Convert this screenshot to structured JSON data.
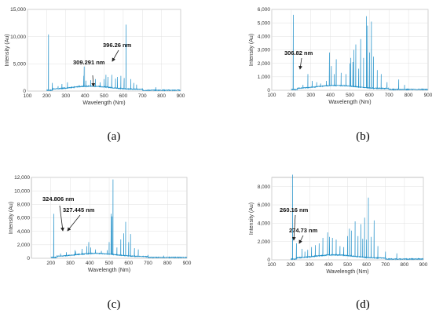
{
  "chart_data": [
    {
      "panel": "(a)",
      "type": "line",
      "xlabel": "Wavelength (Nm)",
      "ylabel": "Intensity (Au)",
      "xlim": [
        100,
        900
      ],
      "ylim": [
        0,
        15000
      ],
      "x_ticks": [
        100,
        200,
        300,
        400,
        500,
        600,
        700,
        800,
        900
      ],
      "x_tick_labels": [
        "100",
        "200",
        "300",
        "400",
        "500",
        "600",
        "700",
        "800",
        "900"
      ],
      "y_ticks": [
        0,
        5000,
        10000,
        15000
      ],
      "y_tick_labels": [
        "0",
        "5,000",
        "10,000",
        "15,000"
      ],
      "grid": true,
      "series_color": "#1f8fc8",
      "annotations": [
        {
          "text": "309.291 nm",
          "x": 309.291,
          "y": 1600
        },
        {
          "text": "396.26 nm",
          "x": 396.26,
          "y": 4500
        }
      ],
      "peaks": [
        [
          210,
          10400
        ],
        [
          230,
          1500
        ],
        [
          260,
          900
        ],
        [
          280,
          1300
        ],
        [
          309,
          1600
        ],
        [
          330,
          800
        ],
        [
          345,
          900
        ],
        [
          370,
          1100
        ],
        [
          394,
          2800
        ],
        [
          396,
          4500
        ],
        [
          405,
          1900
        ],
        [
          430,
          2000
        ],
        [
          455,
          2200
        ],
        [
          480,
          1600
        ],
        [
          500,
          2200
        ],
        [
          510,
          3000
        ],
        [
          520,
          2600
        ],
        [
          540,
          3000
        ],
        [
          560,
          2300
        ],
        [
          570,
          2600
        ],
        [
          588,
          2800
        ],
        [
          605,
          2400
        ],
        [
          615,
          12200
        ],
        [
          640,
          2200
        ],
        [
          655,
          1500
        ],
        [
          670,
          1200
        ],
        [
          700,
          500
        ],
        [
          770,
          700
        ]
      ]
    },
    {
      "panel": "(b)",
      "type": "line",
      "xlabel": "Wavelength (Nm)",
      "ylabel": "Intensity (Au)",
      "xlim": [
        100,
        900
      ],
      "ylim": [
        0,
        6000
      ],
      "x_ticks": [
        100,
        200,
        300,
        400,
        500,
        600,
        700,
        800,
        900
      ],
      "x_tick_labels": [
        "100",
        "200",
        "300",
        "400",
        "500",
        "600",
        "700",
        "800",
        "900"
      ],
      "y_ticks": [
        0,
        1000,
        2000,
        3000,
        4000,
        5000,
        6000
      ],
      "y_tick_labels": [
        "0",
        "1,000",
        "2,000",
        "3,000",
        "4,000",
        "5,000",
        "6,000"
      ],
      "grid": true,
      "series_color": "#1f8fc8",
      "annotations": [
        {
          "text": "306.82 nm",
          "x": 306.82,
          "y": 700
        }
      ],
      "peaks": [
        [
          210,
          5600
        ],
        [
          260,
          400
        ],
        [
          285,
          1200
        ],
        [
          307,
          700
        ],
        [
          330,
          600
        ],
        [
          350,
          500
        ],
        [
          380,
          700
        ],
        [
          395,
          2800
        ],
        [
          405,
          1800
        ],
        [
          420,
          1200
        ],
        [
          430,
          2300
        ],
        [
          455,
          1300
        ],
        [
          480,
          1200
        ],
        [
          500,
          2000
        ],
        [
          505,
          2400
        ],
        [
          515,
          2100
        ],
        [
          520,
          3000
        ],
        [
          530,
          3400
        ],
        [
          545,
          1600
        ],
        [
          555,
          3800
        ],
        [
          570,
          2400
        ],
        [
          585,
          5500
        ],
        [
          590,
          4800
        ],
        [
          600,
          2800
        ],
        [
          610,
          5100
        ],
        [
          620,
          2500
        ],
        [
          640,
          1500
        ],
        [
          660,
          1200
        ],
        [
          690,
          600
        ],
        [
          750,
          800
        ],
        [
          780,
          400
        ]
      ]
    },
    {
      "panel": "(c)",
      "type": "line",
      "xlabel": "Wavelength (Nm)",
      "ylabel": "Intensity (Au)",
      "xlim": [
        100,
        900
      ],
      "ylim": [
        0,
        12000
      ],
      "x_ticks": [
        200,
        300,
        400,
        500,
        600,
        700,
        800,
        900
      ],
      "x_tick_labels": [
        "200",
        "300",
        "400",
        "500",
        "600",
        "700",
        "800",
        "900"
      ],
      "y_ticks": [
        0,
        2000,
        4000,
        6000,
        8000,
        10000,
        12000
      ],
      "y_tick_labels": [
        "0",
        "2,000",
        "4,000",
        "6,000",
        "8,000",
        "10,000",
        "12,000"
      ],
      "grid": true,
      "series_color": "#1f8fc8",
      "annotations": [
        {
          "text": "324.806 nm",
          "x": 324.806,
          "y": 1200
        },
        {
          "text": "327.445 nm",
          "x": 327.445,
          "y": 1000
        }
      ],
      "peaks": [
        [
          215,
          6600
        ],
        [
          250,
          700
        ],
        [
          280,
          900
        ],
        [
          325,
          1200
        ],
        [
          327,
          1000
        ],
        [
          360,
          1400
        ],
        [
          385,
          1800
        ],
        [
          395,
          2400
        ],
        [
          405,
          1600
        ],
        [
          430,
          1300
        ],
        [
          460,
          1100
        ],
        [
          490,
          1200
        ],
        [
          500,
          2400
        ],
        [
          510,
          6600
        ],
        [
          515,
          6200
        ],
        [
          520,
          11700
        ],
        [
          540,
          1600
        ],
        [
          560,
          2800
        ],
        [
          575,
          3700
        ],
        [
          585,
          5400
        ],
        [
          600,
          2400
        ],
        [
          610,
          3600
        ],
        [
          630,
          1500
        ],
        [
          650,
          1300
        ],
        [
          700,
          500
        ],
        [
          780,
          400
        ]
      ]
    },
    {
      "panel": "(d)",
      "type": "line",
      "xlabel": "Wavelength (Nm)",
      "ylabel": "Intensity (Au)",
      "xlim": [
        100,
        900
      ],
      "ylim": [
        0,
        9000
      ],
      "x_ticks": [
        100,
        200,
        300,
        400,
        500,
        600,
        700,
        800,
        900
      ],
      "x_tick_labels": [
        "100",
        "200",
        "300",
        "400",
        "500",
        "600",
        "700",
        "800",
        "900"
      ],
      "y_ticks": [
        0,
        2000,
        4000,
        6000,
        8000
      ],
      "y_tick_labels": [
        "0",
        "2,000",
        "4,000",
        "6,000",
        "8,000"
      ],
      "grid": true,
      "series_color": "#1f8fc8",
      "annotations": [
        {
          "text": "260.16 nm",
          "x": 260.16,
          "y": 1200
        },
        {
          "text": "274.73 nm",
          "x": 274.73,
          "y": 900
        }
      ],
      "peaks": [
        [
          210,
          9300
        ],
        [
          230,
          1800
        ],
        [
          260,
          1200
        ],
        [
          275,
          900
        ],
        [
          290,
          1100
        ],
        [
          310,
          1400
        ],
        [
          330,
          1600
        ],
        [
          350,
          1800
        ],
        [
          370,
          2400
        ],
        [
          395,
          3000
        ],
        [
          405,
          2500
        ],
        [
          420,
          2400
        ],
        [
          440,
          2200
        ],
        [
          460,
          1500
        ],
        [
          480,
          1400
        ],
        [
          500,
          2600
        ],
        [
          510,
          3400
        ],
        [
          520,
          3200
        ],
        [
          540,
          4200
        ],
        [
          555,
          2600
        ],
        [
          570,
          3900
        ],
        [
          580,
          2300
        ],
        [
          590,
          4600
        ],
        [
          600,
          2200
        ],
        [
          610,
          6800
        ],
        [
          625,
          2500
        ],
        [
          640,
          4300
        ],
        [
          660,
          1500
        ],
        [
          700,
          900
        ],
        [
          760,
          700
        ]
      ]
    }
  ]
}
